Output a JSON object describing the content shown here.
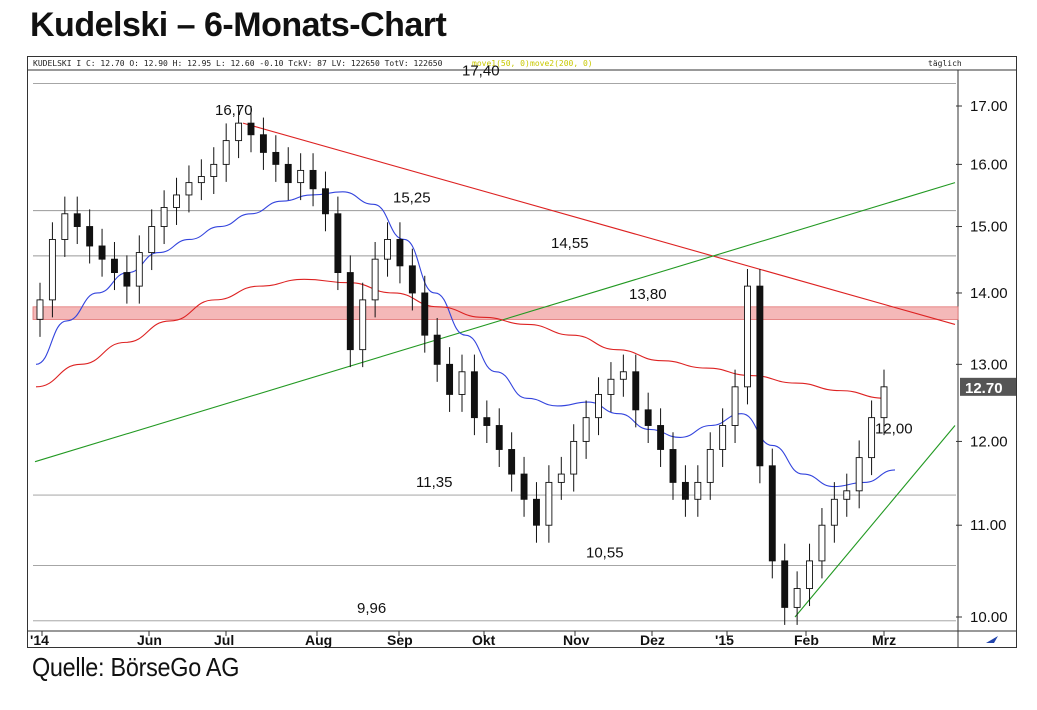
{
  "title": "Kudelski – 6-Monats-Chart",
  "source": "Quelle: BörseGo AG",
  "header": {
    "info": "KUDELSKI I C: 12.70 O: 12.90 H: 12.95 L: 12.60 -0.10 TckV: 87 LV: 122650 TotV: 122650",
    "ma_legend_1": "move1(50, 0)",
    "ma_legend_2": "move2(200, 0)",
    "interval": "täglich"
  },
  "chart_data": {
    "type": "candlestick",
    "title": "Kudelski – 6-Monats-Chart",
    "ylim": [
      9.9,
      17.4
    ],
    "y_scale": "log",
    "y_ticks": [
      "10.00",
      "11.00",
      "12.00",
      "13.00",
      "14.00",
      "15.00",
      "16.00",
      "17.00"
    ],
    "x_ticks": [
      "'14",
      "Jun",
      "Jul",
      "Aug",
      "Sep",
      "Okt",
      "Nov",
      "Dez",
      "'15",
      "Feb",
      "Mrz"
    ],
    "last_price_label": "12.70",
    "last_price": 12.7,
    "horizontal_levels": [
      {
        "label": "17,40",
        "value": 17.4
      },
      {
        "label": "16,70",
        "value": 16.7
      },
      {
        "label": "15,25",
        "value": 15.25
      },
      {
        "label": "14,55",
        "value": 14.55
      },
      {
        "label": "13,80",
        "value": 13.8
      },
      {
        "label": "12,00",
        "value": 12.0
      },
      {
        "label": "11,35",
        "value": 11.35
      },
      {
        "label": "10,55",
        "value": 10.55
      },
      {
        "label": "9,96",
        "value": 9.96
      }
    ],
    "resistance_zone": [
      13.62,
      13.8
    ],
    "price_closes": [
      13.9,
      14.8,
      15.2,
      15.0,
      14.7,
      14.5,
      14.3,
      14.1,
      14.6,
      15.0,
      15.3,
      15.5,
      15.7,
      15.8,
      16.0,
      16.4,
      16.7,
      16.5,
      16.2,
      16.0,
      15.7,
      15.9,
      15.6,
      15.2,
      14.3,
      13.2,
      13.9,
      14.5,
      14.8,
      14.4,
      14.0,
      13.4,
      13.0,
      12.6,
      12.9,
      12.3,
      12.2,
      11.9,
      11.6,
      11.3,
      11.0,
      11.5,
      11.6,
      12.0,
      12.3,
      12.6,
      12.8,
      12.9,
      12.4,
      12.2,
      11.9,
      11.5,
      11.3,
      11.5,
      11.9,
      12.2,
      12.7,
      14.1,
      11.7,
      10.6,
      10.1,
      10.3,
      10.6,
      11.0,
      11.3,
      11.4,
      11.8,
      12.3,
      12.7
    ],
    "series": [
      {
        "name": "move1(50, 0)",
        "color": "#3344dd",
        "values": [
          13.0,
          13.6,
          14.0,
          14.3,
          14.6,
          14.8,
          15.0,
          15.2,
          15.4,
          15.5,
          15.55,
          15.35,
          14.8,
          14.0,
          13.4,
          12.9,
          12.55,
          12.45,
          12.5,
          12.35,
          12.15,
          12.05,
          12.2,
          12.35,
          11.95,
          11.6,
          11.45,
          11.5,
          11.65
        ]
      },
      {
        "name": "move2(200, 0)",
        "color": "#dd2222",
        "values": [
          12.7,
          13.0,
          13.3,
          13.6,
          13.9,
          14.1,
          14.2,
          14.15,
          14.0,
          13.8,
          13.65,
          13.55,
          13.4,
          13.2,
          13.05,
          12.95,
          12.85,
          12.75,
          12.65,
          12.55
        ]
      }
    ],
    "trendlines": [
      {
        "name": "downtrend",
        "color": "#dd2222",
        "from_value": 16.7,
        "to_value": 13.55
      },
      {
        "name": "long uptrend",
        "color": "#229922",
        "from_value": 11.75,
        "to_value": 15.7
      },
      {
        "name": "short uptrend",
        "color": "#229922",
        "from_value": 10.0,
        "to_value": 12.2
      }
    ],
    "colors": {
      "up": "#ffffff",
      "down": "#111111",
      "zone": "#f4b8b8",
      "zone_border": "#e07070",
      "level": "#999999",
      "price_box": "#555555"
    }
  }
}
